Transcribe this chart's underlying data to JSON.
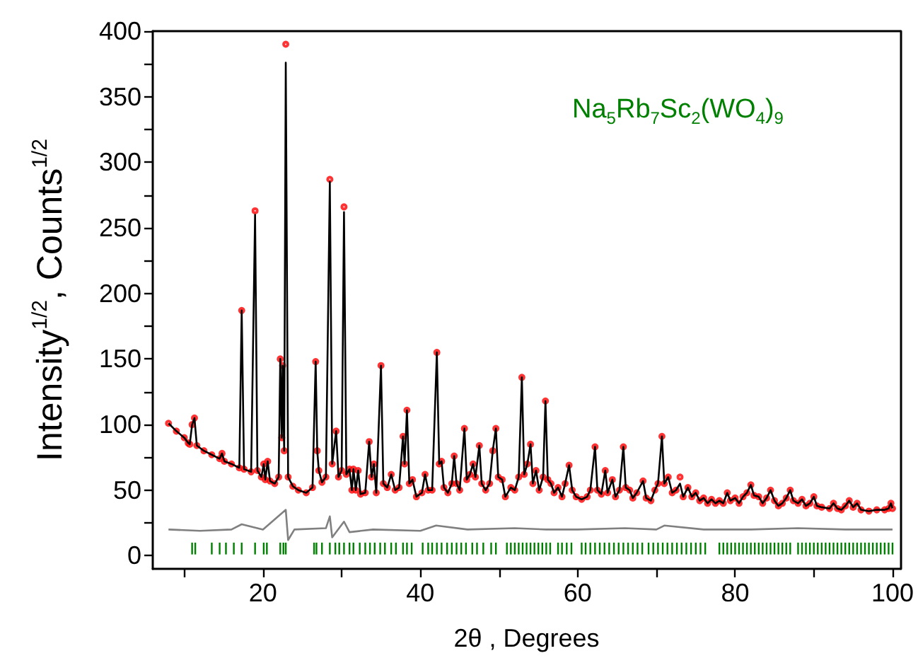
{
  "chart_data": {
    "type": "line",
    "xlabel": "2θ , Degrees",
    "ylabel": "Intensity$^{1/2}$, Counts$^{1/2}$",
    "annotations": [
      "Na$_{5}$Rb$_{7}$Sc$_{2}$(WO$_{4}$)$_{9}$"
    ],
    "xlim": [
      6,
      101
    ],
    "ylim": [
      -10,
      400
    ],
    "xticks": [
      {
        "value": 10,
        "label": null
      },
      20,
      {
        "value": 30,
        "label": null
      },
      40,
      {
        "value": 50,
        "label": null
      },
      60,
      {
        "value": 70,
        "label": null
      },
      80,
      {
        "value": 90,
        "label": null
      },
      100
    ],
    "yticks": [
      0,
      {
        "value": 25,
        "label": null
      },
      50,
      {
        "value": 75,
        "label": null
      },
      100,
      {
        "value": 125,
        "label": null
      },
      150,
      {
        "value": 175,
        "label": null
      },
      200,
      {
        "value": 225,
        "label": null
      },
      250,
      {
        "value": 275,
        "label": null
      },
      300,
      {
        "value": 325,
        "label": null
      },
      350,
      {
        "value": 375,
        "label": null
      },
      400
    ],
    "grid": false,
    "x": [
      8,
      9,
      10,
      10.5,
      10.7,
      11.0,
      11.3,
      11.6,
      12.5,
      13.5,
      14.5,
      14.8,
      15.1,
      16,
      17,
      17.3,
      17.6,
      18.5,
      19.0,
      19.3,
      19.8,
      20.1,
      20.3,
      20.6,
      20.9,
      21.5,
      22.0,
      22.2,
      22.4,
      22.5,
      22.7,
      22.9,
      23.2,
      23.8,
      24.5,
      25.5,
      26.3,
      26.7,
      26.9,
      27.1,
      27.5,
      28.0,
      28.5,
      28.8,
      29.3,
      29.6,
      30.0,
      30.3,
      30.6,
      31.0,
      31.3,
      31.5,
      31.8,
      32.1,
      32.4,
      33.0,
      33.5,
      33.8,
      34.1,
      34.4,
      35.0,
      35.3,
      35.8,
      36.3,
      36.8,
      37.3,
      37.8,
      38.0,
      38.3,
      38.6,
      39.0,
      39.5,
      40.2,
      40.6,
      41.0,
      41.5,
      42.1,
      42.4,
      42.7,
      43.0,
      43.5,
      44.0,
      44.3,
      44.6,
      45.0,
      45.6,
      45.9,
      46.3,
      46.7,
      47.0,
      47.5,
      47.8,
      48.3,
      48.8,
      49.2,
      49.6,
      49.9,
      50.4,
      50.8,
      51.5,
      52.0,
      52.5,
      52.9,
      53.2,
      53.6,
      54.0,
      54.3,
      54.7,
      55.1,
      55.6,
      55.9,
      56.2,
      56.6,
      57.0,
      57.5,
      58.0,
      58.4,
      58.9,
      59.3,
      59.8,
      60.5,
      61.2,
      61.6,
      62.2,
      62.5,
      63.0,
      63.5,
      63.8,
      64.4,
      64.8,
      65.3,
      65.8,
      66.1,
      66.6,
      67.0,
      67.5,
      68.3,
      68.7,
      69.3,
      69.8,
      70.2,
      70.7,
      71.0,
      71.5,
      72.0,
      72.5,
      73.0,
      73.4,
      74.0,
      74.5,
      75.0,
      75.5,
      76.0,
      76.5,
      77.0,
      77.5,
      78.0,
      78.5,
      79.0,
      79.4,
      80.0,
      80.5,
      81.0,
      81.5,
      82.0,
      82.4,
      83.0,
      83.5,
      84.0,
      84.5,
      85.0,
      85.5,
      86.0,
      86.5,
      87.0,
      87.4,
      88.0,
      88.5,
      89.0,
      89.5,
      90.0,
      90.4,
      91.0,
      92.0,
      92.5,
      93.0,
      93.5,
      94.0,
      94.5,
      95.0,
      95.5,
      96.0,
      97.0,
      98.0,
      99.0,
      99.5,
      99.8,
      100.0
    ],
    "series": [
      {
        "type": "scatter",
        "marker": "circle",
        "color": "#ff0000",
        "values": [
          101,
          95,
          90,
          86,
          85,
          100,
          105,
          84,
          80,
          77,
          74,
          78,
          72,
          70,
          67,
          187,
          66,
          64,
          263,
          65,
          60,
          70,
          58,
          72,
          57,
          55,
          60,
          150,
          90,
          145,
          80,
          390,
          60,
          53,
          50,
          48,
          52,
          148,
          80,
          65,
          56,
          60,
          287,
          70,
          95,
          60,
          65,
          266,
          62,
          66,
          50,
          66,
          50,
          65,
          47,
          48,
          87,
          60,
          70,
          48,
          145,
          55,
          52,
          62,
          50,
          52,
          91,
          70,
          111,
          55,
          58,
          45,
          48,
          62,
          50,
          50,
          155,
          70,
          72,
          52,
          48,
          55,
          76,
          55,
          50,
          97,
          58,
          62,
          70,
          60,
          84,
          55,
          50,
          55,
          80,
          97,
          60,
          58,
          45,
          52,
          50,
          60,
          136,
          62,
          70,
          85,
          55,
          65,
          50,
          60,
          118,
          58,
          55,
          48,
          52,
          45,
          55,
          69,
          50,
          45,
          43,
          45,
          50,
          83,
          50,
          47,
          65,
          48,
          58,
          45,
          50,
          83,
          52,
          50,
          44,
          48,
          57,
          44,
          42,
          50,
          55,
          91,
          55,
          60,
          48,
          50,
          60,
          45,
          52,
          45,
          48,
          42,
          44,
          40,
          43,
          40,
          42,
          40,
          48,
          42,
          44,
          40,
          45,
          48,
          54,
          46,
          45,
          40,
          44,
          50,
          42,
          38,
          40,
          44,
          50,
          42,
          40,
          43,
          38,
          40,
          45,
          38,
          37,
          36,
          40,
          36,
          35,
          38,
          42,
          37,
          40,
          35,
          34,
          35,
          35,
          36,
          40,
          36
        ]
      },
      {
        "marker": "none",
        "color": "#000000",
        "values": [
          101,
          95,
          90,
          86,
          85,
          100,
          105,
          84,
          80,
          77,
          74,
          78,
          72,
          70,
          67,
          187,
          66,
          64,
          260,
          65,
          60,
          70,
          58,
          72,
          57,
          55,
          60,
          150,
          90,
          145,
          80,
          376,
          60,
          53,
          50,
          48,
          52,
          148,
          80,
          65,
          56,
          60,
          285,
          70,
          95,
          60,
          65,
          262,
          62,
          66,
          50,
          66,
          50,
          65,
          47,
          48,
          87,
          60,
          70,
          48,
          145,
          55,
          52,
          62,
          50,
          52,
          91,
          70,
          111,
          55,
          58,
          45,
          48,
          62,
          50,
          50,
          155,
          70,
          72,
          52,
          48,
          55,
          76,
          55,
          50,
          97,
          58,
          62,
          70,
          60,
          84,
          55,
          50,
          55,
          80,
          97,
          60,
          58,
          45,
          52,
          50,
          60,
          136,
          62,
          70,
          85,
          55,
          65,
          50,
          60,
          118,
          58,
          55,
          48,
          52,
          45,
          55,
          69,
          50,
          45,
          43,
          45,
          50,
          83,
          50,
          47,
          65,
          48,
          58,
          45,
          50,
          83,
          52,
          50,
          44,
          48,
          57,
          44,
          42,
          50,
          55,
          91,
          55,
          60,
          48,
          50,
          55,
          45,
          52,
          45,
          48,
          42,
          44,
          40,
          43,
          40,
          42,
          40,
          48,
          42,
          44,
          40,
          45,
          48,
          54,
          46,
          45,
          40,
          44,
          50,
          42,
          38,
          40,
          44,
          50,
          42,
          40,
          43,
          38,
          40,
          45,
          38,
          37,
          36,
          40,
          36,
          35,
          38,
          42,
          37,
          40,
          35,
          34,
          35,
          35,
          36,
          40,
          36
        ]
      },
      {
        "marker": "none",
        "color": "#808080",
        "x": [
          8,
          12,
          16,
          17.3,
          20,
          22.9,
          23.2,
          24,
          28,
          28.5,
          28.8,
          30.3,
          31,
          34,
          40,
          42,
          46,
          52,
          56,
          60,
          66,
          70,
          71,
          76,
          82,
          88,
          94,
          100
        ],
        "values": [
          20,
          19,
          20,
          24,
          20,
          35,
          12,
          20,
          21,
          30,
          14,
          26,
          18,
          20,
          19,
          23,
          20,
          21,
          20,
          20,
          21,
          20,
          23,
          20,
          20,
          21,
          20,
          20
        ]
      },
      {
        "type": "bar",
        "color": "#008000",
        "base": [
          1,
          1,
          1,
          1,
          1,
          1,
          1,
          1,
          1,
          1,
          1,
          1,
          1,
          1,
          1,
          1,
          1,
          1,
          1,
          1,
          1,
          1,
          1,
          1,
          1,
          1,
          1,
          1,
          1,
          1,
          1,
          1,
          1,
          1,
          1,
          1,
          1,
          1,
          1,
          1,
          1,
          1,
          1,
          1,
          1,
          1,
          1,
          1,
          1,
          1,
          1,
          1,
          1,
          1,
          1,
          1,
          1,
          1,
          1,
          1,
          1,
          1,
          1,
          1,
          1,
          1,
          1,
          1,
          1,
          1,
          1,
          1,
          1,
          1,
          1,
          1,
          1,
          1,
          1,
          1,
          1,
          1,
          1,
          1,
          1,
          1,
          1,
          1,
          1,
          1,
          1,
          1,
          1,
          1,
          1,
          1,
          1,
          1,
          1,
          1,
          1,
          1,
          1,
          1,
          1,
          1,
          1,
          1,
          1,
          1,
          1,
          1,
          1,
          1,
          1,
          1,
          1,
          1,
          1,
          1,
          1,
          1,
          1,
          1,
          1,
          1,
          1,
          1,
          1,
          1,
          1,
          1,
          1,
          1,
          1
        ],
        "x": [
          11,
          11.4,
          13.5,
          14.5,
          15.3,
          16.3,
          17.3,
          19.0,
          20.1,
          20.5,
          22.2,
          22.6,
          22.9,
          26.5,
          26.8,
          27.5,
          28.5,
          29.2,
          29.7,
          30.3,
          31.0,
          31.5,
          32.3,
          33.0,
          33.6,
          34.2,
          34.9,
          35.5,
          36.3,
          36.9,
          37.8,
          38.3,
          38.9,
          40.3,
          41.0,
          41.5,
          42.1,
          42.7,
          43.4,
          44.0,
          44.6,
          45.2,
          45.8,
          46.6,
          47.2,
          48.0,
          49.0,
          49.6,
          51.0,
          51.5,
          52.0,
          52.5,
          53.0,
          53.5,
          54.0,
          54.5,
          55.0,
          55.5,
          56.0,
          56.5,
          57.5,
          58.0,
          58.6,
          59.2,
          60.5,
          61.0,
          61.6,
          62.2,
          62.8,
          63.4,
          64.0,
          64.6,
          65.2,
          65.8,
          66.4,
          67.0,
          67.6,
          68.2,
          69.0,
          69.6,
          70.2,
          70.8,
          71.4,
          72.0,
          72.6,
          73.2,
          73.8,
          74.4,
          75.0,
          75.6,
          76.2,
          78.0,
          78.5,
          79.0,
          79.5,
          80.0,
          80.5,
          81.0,
          81.5,
          82.0,
          82.5,
          83.0,
          83.5,
          84.0,
          84.5,
          85.0,
          85.5,
          86.0,
          86.5,
          87.0,
          88.0,
          88.5,
          89.0,
          89.5,
          90.0,
          90.5,
          91.0,
          91.5,
          92.0,
          92.5,
          93.0,
          93.5,
          94.0,
          94.5,
          95.0,
          95.5,
          96.0,
          96.5,
          97.0,
          97.5,
          98.0,
          98.5,
          99.0,
          99.5,
          100.0
        ],
        "values": [
          9,
          9,
          9,
          9,
          9,
          9,
          9,
          9,
          9,
          9,
          9,
          9,
          9,
          9,
          9,
          9,
          9,
          9,
          9,
          9,
          9,
          9,
          9,
          9,
          9,
          9,
          9,
          9,
          9,
          9,
          9,
          9,
          9,
          9,
          9,
          9,
          9,
          9,
          9,
          9,
          9,
          9,
          9,
          9,
          9,
          9,
          9,
          9,
          9,
          9,
          9,
          9,
          9,
          9,
          9,
          9,
          9,
          9,
          9,
          9,
          9,
          9,
          9,
          9,
          9,
          9,
          9,
          9,
          9,
          9,
          9,
          9,
          9,
          9,
          9,
          9,
          9,
          9,
          9,
          9,
          9,
          9,
          9,
          9,
          9,
          9,
          9,
          9,
          9,
          9,
          9,
          9,
          9,
          9,
          9,
          9,
          9,
          9,
          9,
          9,
          9,
          9,
          9,
          9,
          9,
          9,
          9,
          9,
          9,
          9,
          9,
          9,
          9,
          9,
          9,
          9,
          9,
          9,
          9,
          9,
          9,
          9,
          9,
          9,
          9,
          9,
          9,
          9,
          9,
          9,
          9,
          9,
          9,
          9,
          9
        ]
      }
    ]
  }
}
